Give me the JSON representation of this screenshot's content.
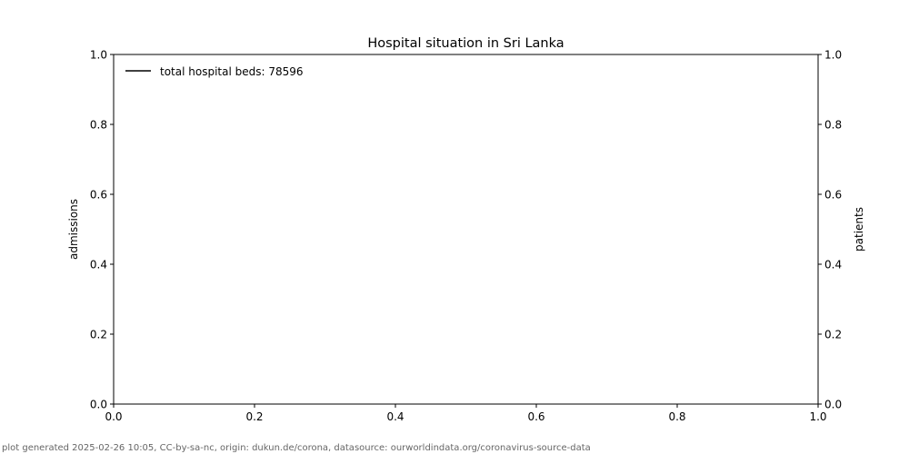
{
  "chart_data": {
    "type": "line",
    "title": "Hospital situation in Sri Lanka",
    "ylabel": "admissions",
    "ylabel_right": "patients",
    "xlim": [
      0,
      1
    ],
    "ylim": [
      0,
      1
    ],
    "ylim_right": [
      0,
      1
    ],
    "x_ticks": [
      "0.0",
      "0.2",
      "0.4",
      "0.6",
      "0.8",
      "1.0"
    ],
    "y_ticks": [
      "0.0",
      "0.2",
      "0.4",
      "0.6",
      "0.8",
      "1.0"
    ],
    "y_ticks_right": [
      "0.0",
      "0.2",
      "0.4",
      "0.6",
      "0.8",
      "1.0"
    ],
    "grid": false,
    "legend_placement": "top-left",
    "series": [
      {
        "name": "total hospital beds: 78596",
        "color": "#000000",
        "values": []
      }
    ]
  },
  "footer": "plot generated 2025-02-26 10:05, CC-by-sa-nc, origin: dukun.de/corona, datasource: ourworldindata.org/coronavirus-source-data"
}
